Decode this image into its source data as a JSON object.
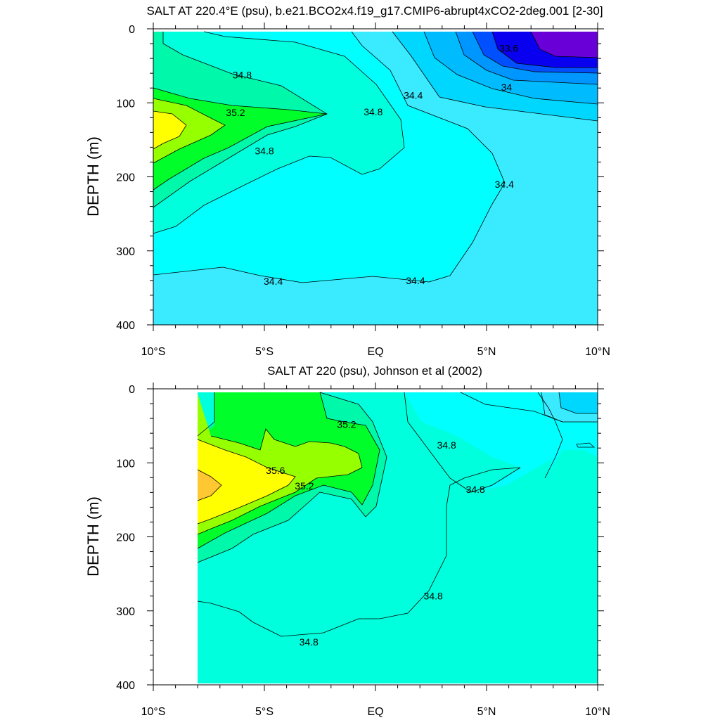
{
  "chart_data": [
    {
      "type": "contour",
      "title": "SALT AT 220.4°E (psu), b.e21.BCO2x4.f19_g17.CMIP6-abrupt4xCO2-2deg.001 [2-30]",
      "xlabel": "",
      "ylabel": "DEPTH (m)",
      "xlim": [
        -10,
        10
      ],
      "ylim": [
        0,
        400
      ],
      "y_inverted": true,
      "x_ticks": [
        {
          "value": -10,
          "label": "10°S"
        },
        {
          "value": -5,
          "label": "5°S"
        },
        {
          "value": 0,
          "label": "EQ"
        },
        {
          "value": 5,
          "label": "5°N"
        },
        {
          "value": 10,
          "label": "10°N"
        }
      ],
      "y_ticks": [
        0,
        100,
        200,
        300,
        400
      ],
      "grid": false,
      "fill_colors": {
        "33.2": "#6a00d8",
        "33.4": "#0a00f0",
        "33.6": "#0050ff",
        "33.8": "#0096ff",
        "34.0": "#00bcff",
        "34.2": "#00d7ff",
        "34.4": "#3aeaff",
        "34.6": "#00ffff",
        "34.8": "#00ffdc",
        "35.0": "#00f8aa",
        "35.2": "#00ff2a",
        "35.4": "#96ff00",
        "35.6": "#ffff00",
        "35.8": "#ffc832"
      },
      "contour_labels": [
        {
          "text": "34.8",
          "x": -6.0,
          "y": 62
        },
        {
          "text": "35.2",
          "x": -6.3,
          "y": 113
        },
        {
          "text": "34.8",
          "x": -0.1,
          "y": 112
        },
        {
          "text": "34.8",
          "x": -5.0,
          "y": 165
        },
        {
          "text": "34.4",
          "x": 1.7,
          "y": 90
        },
        {
          "text": "33.6",
          "x": 6.0,
          "y": 26
        },
        {
          "text": "34",
          "x": 5.9,
          "y": 79
        },
        {
          "text": "34.4",
          "x": 5.8,
          "y": 210
        },
        {
          "text": "34.4",
          "x": -4.6,
          "y": 341
        },
        {
          "text": "34.4",
          "x": 1.8,
          "y": 340
        }
      ]
    },
    {
      "type": "contour",
      "title": "SALT AT 220 (psu), Johnson et al (2002)",
      "xlabel": "",
      "ylabel": "DEPTH (m)",
      "xlim": [
        -10,
        10
      ],
      "ylim": [
        0,
        400
      ],
      "y_inverted": true,
      "data_extent_x": [
        -8,
        10
      ],
      "x_ticks": [
        {
          "value": -10,
          "label": "10°S"
        },
        {
          "value": -5,
          "label": "5°S"
        },
        {
          "value": 0,
          "label": "EQ"
        },
        {
          "value": 5,
          "label": "5°N"
        },
        {
          "value": 10,
          "label": "10°N"
        }
      ],
      "y_ticks": [
        0,
        100,
        200,
        300,
        400
      ],
      "grid": false,
      "contour_labels": [
        {
          "text": "35.2",
          "x": -1.3,
          "y": 48
        },
        {
          "text": "34.8",
          "x": 3.2,
          "y": 76
        },
        {
          "text": "35.6",
          "x": -4.5,
          "y": 110
        },
        {
          "text": "35.2",
          "x": -3.2,
          "y": 131
        },
        {
          "text": "34.8",
          "x": 4.5,
          "y": 136
        },
        {
          "text": "34.8",
          "x": 2.6,
          "y": 280
        },
        {
          "text": "34.8",
          "x": -3.0,
          "y": 342
        }
      ]
    }
  ]
}
